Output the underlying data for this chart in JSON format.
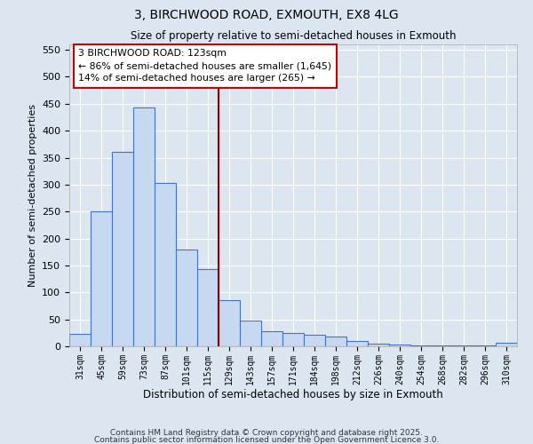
{
  "title1": "3, BIRCHWOOD ROAD, EXMOUTH, EX8 4LG",
  "title2": "Size of property relative to semi-detached houses in Exmouth",
  "xlabel": "Distribution of semi-detached houses by size in Exmouth",
  "ylabel": "Number of semi-detached properties",
  "categories": [
    "31sqm",
    "45sqm",
    "59sqm",
    "73sqm",
    "87sqm",
    "101sqm",
    "115sqm",
    "129sqm",
    "143sqm",
    "157sqm",
    "171sqm",
    "184sqm",
    "198sqm",
    "212sqm",
    "226sqm",
    "240sqm",
    "254sqm",
    "268sqm",
    "282sqm",
    "296sqm",
    "310sqm"
  ],
  "values": [
    23,
    250,
    360,
    443,
    303,
    180,
    143,
    85,
    47,
    28,
    25,
    22,
    18,
    10,
    5,
    3,
    2,
    1,
    1,
    1,
    6
  ],
  "bar_color": "#c6d9f1",
  "bar_edge_color": "#4472c4",
  "background_color": "#dce6f1",
  "grid_color": "#ffffff",
  "vline_color": "#8b0000",
  "annotation_line1": "3 BIRCHWOOD ROAD: 123sqm",
  "annotation_line2": "← 86% of semi-detached houses are smaller (1,645)",
  "annotation_line3": "14% of semi-detached houses are larger (265) →",
  "annotation_box_color": "#ffffff",
  "annotation_edge_color": "#cc0000",
  "ylim": [
    0,
    560
  ],
  "yticks": [
    0,
    50,
    100,
    150,
    200,
    250,
    300,
    350,
    400,
    450,
    500,
    550
  ],
  "footer1": "Contains HM Land Registry data © Crown copyright and database right 2025.",
  "footer2": "Contains public sector information licensed under the Open Government Licence 3.0."
}
